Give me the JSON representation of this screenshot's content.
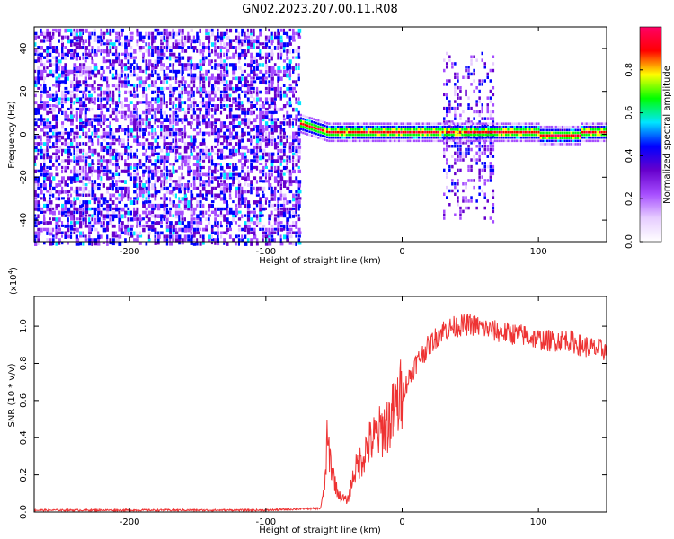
{
  "page": {
    "title": "GN02.2023.207.00.11.R08"
  },
  "chart_data": [
    {
      "type": "heatmap",
      "title": "GN02.2023.207.00.11.R08",
      "xlabel": "Height of straight line (km)",
      "ylabel": "Frequency (Hz)",
      "xlim": [
        -270,
        150
      ],
      "ylim": [
        -50,
        50
      ],
      "xticks": [
        -200,
        -100,
        0,
        100
      ],
      "yticks": [
        -40,
        -20,
        0,
        20,
        40
      ],
      "colorbar": {
        "label": "Normalized spectral amplitude",
        "range": [
          0.0,
          1.0
        ],
        "ticks": [
          "0.0",
          "0.2",
          "0.4",
          "0.6",
          "0.8"
        ],
        "colors": [
          "#ffffff",
          "#e6ccff",
          "#a64dff",
          "#6600cc",
          "#0000ff",
          "#00e6ff",
          "#00ff00",
          "#ffff00",
          "#ff0000",
          "#ff0066"
        ]
      },
      "regions": [
        {
          "x": [
            -270,
            -75
          ],
          "description": "broadband noise",
          "amplitude": 0.35
        },
        {
          "x": [
            -75,
            150
          ],
          "y_center": 1.5,
          "description": "narrow carrier band",
          "amplitude": 0.9
        },
        {
          "x": [
            30,
            68
          ],
          "y_range": [
            -40,
            40
          ],
          "description": "noise burst",
          "amplitude": 0.3
        }
      ]
    },
    {
      "type": "line",
      "title": "",
      "xlabel": "Height of straight line (km)",
      "ylabel": "SNR (10 * v/v)",
      "exponent_label": "(x10",
      "exponent_power": "4",
      "exponent_close": ")",
      "xlim": [
        -270,
        150
      ],
      "ylim": [
        0,
        1.16
      ],
      "xticks": [
        -200,
        -100,
        0,
        100
      ],
      "yticks": [
        "0.0",
        "0.2",
        "0.4",
        "0.6",
        "0.8",
        "1.0"
      ],
      "series": [
        {
          "color": "#ee3333",
          "x": [
            -270,
            -200,
            -100,
            -60,
            -57,
            -55,
            -52,
            -48,
            -45,
            -40,
            -35,
            -30,
            -25,
            -20,
            -15,
            -10,
            -5,
            0,
            5,
            10,
            20,
            30,
            40,
            50,
            60,
            70,
            80,
            90,
            100,
            110,
            120,
            130,
            140,
            150
          ],
          "y": [
            0.01,
            0.01,
            0.01,
            0.02,
            0.12,
            0.38,
            0.25,
            0.12,
            0.08,
            0.06,
            0.22,
            0.28,
            0.36,
            0.4,
            0.44,
            0.48,
            0.55,
            0.64,
            0.72,
            0.8,
            0.9,
            0.98,
            1.0,
            1.01,
            0.99,
            0.97,
            0.96,
            0.95,
            0.93,
            0.92,
            0.93,
            0.9,
            0.88,
            0.87
          ]
        }
      ]
    }
  ]
}
